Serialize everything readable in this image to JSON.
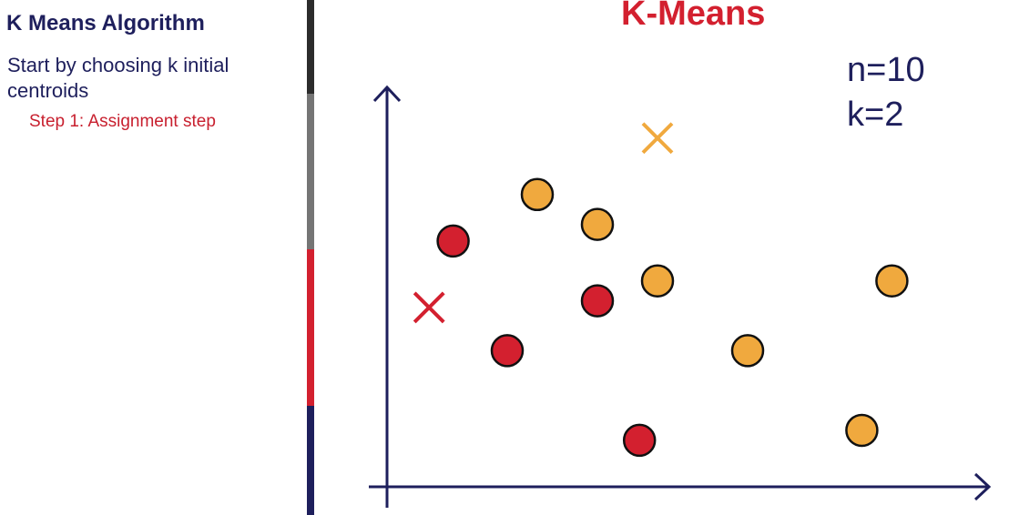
{
  "sidebar": {
    "title": "K Means Algorithm",
    "intro": "Start by choosing k initial centroids",
    "step": "Step 1: Assignment step"
  },
  "diagram": {
    "title": "K-Means",
    "params": {
      "n": "n=10",
      "k": "k=2"
    }
  },
  "colors": {
    "navy": "#1e1f5c",
    "red": "#d3202f",
    "orange": "#f0a93e",
    "gray": "#757575",
    "dark": "#2c2c2c"
  },
  "points": [
    {
      "cluster": "red",
      "x": 1.1,
      "y": 7.4
    },
    {
      "cluster": "red",
      "x": 2.0,
      "y": 4.1
    },
    {
      "cluster": "red",
      "x": 3.5,
      "y": 5.6
    },
    {
      "cluster": "red",
      "x": 4.2,
      "y": 1.4
    },
    {
      "cluster": "orange",
      "x": 2.5,
      "y": 8.8
    },
    {
      "cluster": "orange",
      "x": 3.5,
      "y": 7.9
    },
    {
      "cluster": "orange",
      "x": 4.5,
      "y": 6.2
    },
    {
      "cluster": "orange",
      "x": 6.0,
      "y": 4.1
    },
    {
      "cluster": "orange",
      "x": 7.9,
      "y": 1.7
    },
    {
      "cluster": "orange",
      "x": 8.4,
      "y": 6.2
    }
  ],
  "centroids": [
    {
      "cluster": "red",
      "x": 0.7,
      "y": 5.4
    },
    {
      "cluster": "orange",
      "x": 4.5,
      "y": 10.5
    }
  ]
}
